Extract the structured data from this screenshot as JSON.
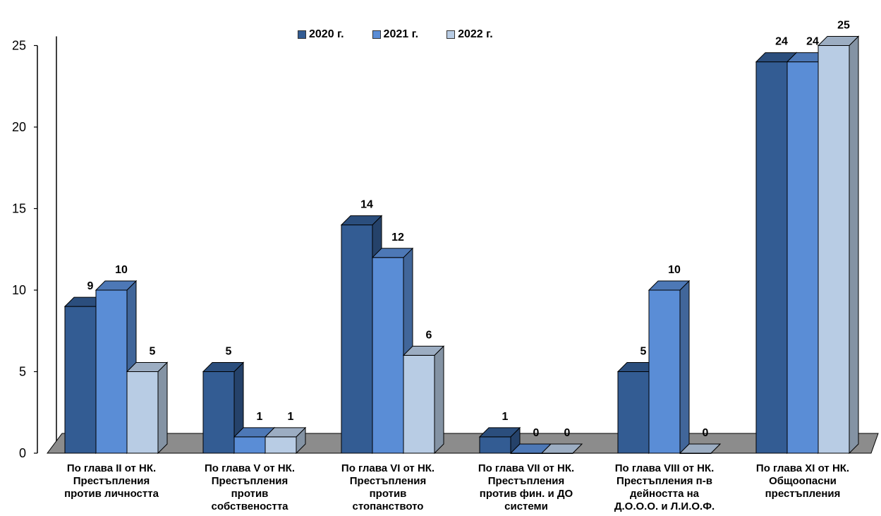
{
  "chart_data": {
    "type": "bar",
    "title": "",
    "xlabel": "",
    "ylabel": "",
    "ylim": [
      0,
      25
    ],
    "y_ticks": [
      "0",
      "5",
      "10",
      "15",
      "20",
      "25"
    ],
    "categories": [
      [
        "По глава II от НК.",
        "Престъпления",
        "против личността"
      ],
      [
        "По глава V от НК.",
        "Престъпления",
        "против",
        "собствеността"
      ],
      [
        "По глава VI от НК.",
        "Престъпления",
        "против",
        "стопанството"
      ],
      [
        "По глава VII от НК.",
        "Престъпления",
        "против фин. и ДО",
        "системи"
      ],
      [
        "По глава VIII от НК.",
        "Престъпления п-в",
        "дейността на",
        "Д.О.О.О. и Л.И.О.Ф."
      ],
      [
        "По глава XI от НК.",
        "Общоопасни",
        "престъпления"
      ]
    ],
    "series": [
      {
        "name": "2020 г.",
        "values": [
          9,
          5,
          14,
          1,
          5,
          24
        ],
        "color": "#335c93"
      },
      {
        "name": "2021 г.",
        "values": [
          10,
          1,
          12,
          0,
          10,
          24
        ],
        "color": "#5a8dd6"
      },
      {
        "name": "2022 г.",
        "values": [
          5,
          1,
          6,
          0,
          0,
          25
        ],
        "color": "#b8cce4"
      }
    ],
    "legend_position": "top-center",
    "grid": false,
    "style": "3d-clustered-column"
  }
}
